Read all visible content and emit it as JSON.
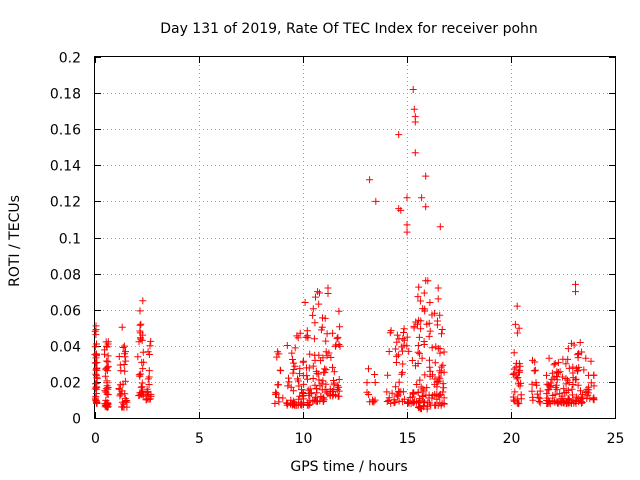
{
  "chart_data": {
    "type": "scatter",
    "title": "Day 131 of 2019, Rate Of TEC Index for receiver pohn",
    "xlabel": "GPS time / hours",
    "ylabel": "ROTI / TECUs",
    "xlim": [
      0,
      25
    ],
    "ylim": [
      0,
      0.2
    ],
    "xticks": [
      0,
      5,
      10,
      15,
      20,
      25
    ],
    "xtick_labels": [
      "0",
      "5",
      "10",
      "15",
      "20",
      "25"
    ],
    "yticks": [
      0,
      0.02,
      0.04,
      0.06,
      0.08,
      0.1,
      0.12,
      0.14,
      0.16,
      0.18,
      0.2
    ],
    "ytick_labels": [
      "0",
      "0.02",
      "0.04",
      "0.06",
      "0.08",
      "0.1",
      "0.12",
      "0.14",
      "0.16",
      "0.18",
      "0.2"
    ],
    "grid": true,
    "marker": "+",
    "color": "#ff0000",
    "clusters": [
      {
        "x": [
          0.0,
          0.1
        ],
        "y": [
          0.008,
          0.05
        ],
        "n": 38,
        "seed": 11
      },
      {
        "x": [
          0.45,
          0.65
        ],
        "y": [
          0.006,
          0.043
        ],
        "n": 44,
        "seed": 12
      },
      {
        "x": [
          1.15,
          1.55
        ],
        "y": [
          0.006,
          0.051
        ],
        "n": 34,
        "seed": 13
      },
      {
        "x": [
          2.05,
          2.35
        ],
        "y": [
          0.012,
          0.065
        ],
        "n": 30,
        "seed": 14
      },
      {
        "x": [
          2.45,
          2.7
        ],
        "y": [
          0.01,
          0.05
        ],
        "n": 20,
        "seed": 15
      },
      {
        "x": [
          8.6,
          9.1
        ],
        "y": [
          0.008,
          0.037
        ],
        "n": 14,
        "seed": 16
      },
      {
        "x": [
          9.2,
          10.4
        ],
        "y": [
          0.007,
          0.049
        ],
        "n": 75,
        "seed": 17
      },
      {
        "x": [
          10.4,
          11.1
        ],
        "y": [
          0.009,
          0.07
        ],
        "n": 50,
        "seed": 18
      },
      {
        "x": [
          11.1,
          11.8
        ],
        "y": [
          0.012,
          0.072
        ],
        "n": 40,
        "seed": 19
      },
      {
        "x": [
          13.0,
          13.5
        ],
        "y": [
          0.009,
          0.03
        ],
        "n": 12,
        "seed": 20
      },
      {
        "x": [
          14.0,
          14.6
        ],
        "y": [
          0.008,
          0.049
        ],
        "n": 24,
        "seed": 21
      },
      {
        "x": [
          14.6,
          15.5
        ],
        "y": [
          0.008,
          0.055
        ],
        "n": 42,
        "seed": 22
      },
      {
        "x": [
          15.5,
          16.0
        ],
        "y": [
          0.005,
          0.075
        ],
        "n": 48,
        "seed": 23
      },
      {
        "x": [
          16.0,
          16.8
        ],
        "y": [
          0.007,
          0.058
        ],
        "n": 60,
        "seed": 24
      },
      {
        "x": [
          20.1,
          20.5
        ],
        "y": [
          0.008,
          0.052
        ],
        "n": 30,
        "seed": 25
      },
      {
        "x": [
          21.0,
          21.5
        ],
        "y": [
          0.008,
          0.035
        ],
        "n": 16,
        "seed": 26
      },
      {
        "x": [
          21.7,
          22.6
        ],
        "y": [
          0.008,
          0.035
        ],
        "n": 55,
        "seed": 27
      },
      {
        "x": [
          22.5,
          23.5
        ],
        "y": [
          0.008,
          0.045
        ],
        "n": 60,
        "seed": 28
      },
      {
        "x": [
          23.5,
          24.0
        ],
        "y": [
          0.01,
          0.04
        ],
        "n": 20,
        "seed": 29
      }
    ],
    "outliers": [
      {
        "x": 13.2,
        "y": 0.132
      },
      {
        "x": 13.5,
        "y": 0.12
      },
      {
        "x": 14.6,
        "y": 0.157
      },
      {
        "x": 14.6,
        "y": 0.116
      },
      {
        "x": 14.7,
        "y": 0.115
      },
      {
        "x": 15.0,
        "y": 0.122
      },
      {
        "x": 15.0,
        "y": 0.107
      },
      {
        "x": 15.0,
        "y": 0.103
      },
      {
        "x": 15.3,
        "y": 0.182
      },
      {
        "x": 15.35,
        "y": 0.171
      },
      {
        "x": 15.4,
        "y": 0.167
      },
      {
        "x": 15.4,
        "y": 0.164
      },
      {
        "x": 15.4,
        "y": 0.147
      },
      {
        "x": 15.7,
        "y": 0.122
      },
      {
        "x": 15.9,
        "y": 0.134
      },
      {
        "x": 15.9,
        "y": 0.117
      },
      {
        "x": 16.6,
        "y": 0.106
      },
      {
        "x": 15.9,
        "y": 0.076
      },
      {
        "x": 16.0,
        "y": 0.076
      },
      {
        "x": 16.1,
        "y": 0.064
      },
      {
        "x": 16.5,
        "y": 0.072
      },
      {
        "x": 16.5,
        "y": 0.066
      },
      {
        "x": 10.1,
        "y": 0.064
      },
      {
        "x": 10.6,
        "y": 0.067
      },
      {
        "x": 10.7,
        "y": 0.07
      },
      {
        "x": 11.2,
        "y": 0.072
      },
      {
        "x": 11.2,
        "y": 0.069
      },
      {
        "x": 20.3,
        "y": 0.062
      },
      {
        "x": 23.1,
        "y": 0.074
      },
      {
        "x": 23.1,
        "y": 0.07
      },
      {
        "x": 2.3,
        "y": 0.065
      },
      {
        "x": 0.05,
        "y": 0.051
      },
      {
        "x": 0.05,
        "y": 0.049
      }
    ]
  }
}
